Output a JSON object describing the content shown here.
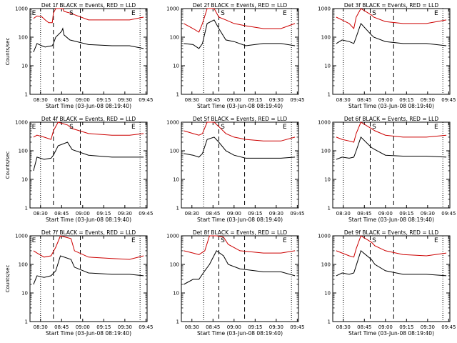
{
  "chart_data": [
    {
      "type": "line",
      "title": "Det 1f BLACK = Events, RED = LLD",
      "xlabel": "Start Time (03-Jun-08 08:19:40)",
      "ylabel": "Counts/sec",
      "yscale": "log",
      "ylim": [
        1,
        1000
      ],
      "ytick_labels": [
        "1",
        "10",
        "100",
        "1000"
      ],
      "xtick_labels": [
        "08:30",
        "08:45",
        "09:00",
        "09:15",
        "09:30",
        "09:45"
      ],
      "annotations": [
        "E",
        "S",
        "E"
      ],
      "series": [
        {
          "name": "BLACK = Events",
          "color": "#000000",
          "x": [
            0.03,
            0.06,
            0.1,
            0.13,
            0.16,
            0.19,
            0.2,
            0.22,
            0.27,
            0.28,
            0.29,
            0.34,
            0.5,
            0.7,
            0.85,
            0.97
          ],
          "y": [
            30,
            60,
            50,
            45,
            48,
            50,
            60,
            100,
            160,
            200,
            120,
            80,
            55,
            50,
            50,
            40
          ]
        },
        {
          "name": "RED = LLD",
          "color": "#cc0000",
          "x": [
            0.03,
            0.06,
            0.1,
            0.13,
            0.16,
            0.19,
            0.2,
            0.22,
            0.27,
            0.28,
            0.29,
            0.34,
            0.5,
            0.7,
            0.85,
            0.97
          ],
          "y": [
            450,
            550,
            520,
            400,
            320,
            320,
            700,
            1000,
            1000,
            1000,
            800,
            700,
            400,
            400,
            400,
            500
          ]
        }
      ]
    },
    {
      "type": "line",
      "title": "Det 2f BLACK = Events, RED = LLD",
      "xlabel": "Start Time (03-Jun-08 08:19:40)",
      "ylabel": "",
      "yscale": "log",
      "ylim": [
        1,
        1000
      ],
      "ytick_labels": [
        "1",
        "10",
        "100",
        "1000"
      ],
      "xtick_labels": [
        "08:30",
        "08:45",
        "09:00",
        "09:15",
        "09:30",
        "09:45"
      ],
      "annotations": [
        "S",
        "E"
      ],
      "series": [
        {
          "name": "BLACK = Events",
          "color": "#000000",
          "x": [
            0.02,
            0.1,
            0.15,
            0.18,
            0.22,
            0.28,
            0.32,
            0.38,
            0.45,
            0.55,
            0.7,
            0.85,
            0.97
          ],
          "y": [
            60,
            55,
            40,
            60,
            300,
            400,
            200,
            80,
            70,
            50,
            60,
            60,
            50
          ]
        },
        {
          "name": "RED = LLD",
          "color": "#cc0000",
          "x": [
            0.02,
            0.1,
            0.15,
            0.18,
            0.22,
            0.28,
            0.32,
            0.38,
            0.45,
            0.55,
            0.7,
            0.85,
            0.97
          ],
          "y": [
            300,
            200,
            150,
            300,
            1000,
            1000,
            500,
            400,
            300,
            250,
            200,
            200,
            300
          ]
        }
      ]
    },
    {
      "type": "line",
      "title": "Det 3f BLACK = Events, RED = LLD",
      "xlabel": "Start Time (03-Jun-08 08:19:40)",
      "ylabel": "",
      "yscale": "log",
      "ylim": [
        1,
        1000
      ],
      "ytick_labels": [
        "1",
        "10",
        "100",
        "1000"
      ],
      "xtick_labels": [
        "08:30",
        "08:45",
        "09:00",
        "09:15",
        "09:30",
        "09:45"
      ],
      "annotations": [
        "S",
        "E"
      ],
      "series": [
        {
          "name": "BLACK = Events",
          "color": "#000000",
          "x": [
            0.03,
            0.08,
            0.14,
            0.18,
            0.2,
            0.24,
            0.33,
            0.35,
            0.45,
            0.6,
            0.8,
            0.97
          ],
          "y": [
            60,
            80,
            70,
            60,
            100,
            300,
            120,
            100,
            70,
            60,
            60,
            50
          ]
        },
        {
          "name": "RED = LLD",
          "color": "#cc0000",
          "x": [
            0.03,
            0.08,
            0.14,
            0.18,
            0.2,
            0.24,
            0.33,
            0.35,
            0.45,
            0.6,
            0.8,
            0.97
          ],
          "y": [
            500,
            400,
            300,
            200,
            500,
            1000,
            600,
            500,
            350,
            300,
            300,
            400
          ]
        }
      ]
    },
    {
      "type": "line",
      "title": "Det 4f BLACK = Events, RED = LLD",
      "xlabel": "Start Time (03-Jun-08 08:19:40)",
      "ylabel": "Counts/sec",
      "yscale": "log",
      "ylim": [
        1,
        1000
      ],
      "ytick_labels": [
        "1",
        "10",
        "100",
        "1000"
      ],
      "xtick_labels": [
        "08:30",
        "08:45",
        "09:00",
        "09:15",
        "09:30",
        "09:45"
      ],
      "annotations": [
        "E",
        "S",
        "E"
      ],
      "series": [
        {
          "name": "BLACK = Events",
          "color": "#000000",
          "x": [
            0.03,
            0.06,
            0.12,
            0.18,
            0.2,
            0.24,
            0.32,
            0.36,
            0.5,
            0.7,
            0.85,
            0.97
          ],
          "y": [
            20,
            60,
            50,
            55,
            70,
            150,
            200,
            110,
            70,
            60,
            60,
            60
          ]
        },
        {
          "name": "RED = LLD",
          "color": "#cc0000",
          "x": [
            0.03,
            0.06,
            0.12,
            0.18,
            0.2,
            0.24,
            0.32,
            0.36,
            0.5,
            0.7,
            0.85,
            0.97
          ],
          "y": [
            300,
            350,
            300,
            250,
            500,
            1000,
            800,
            600,
            400,
            350,
            350,
            400
          ]
        }
      ]
    },
    {
      "type": "line",
      "title": "Det 5f BLACK = Events, RED = LLD",
      "xlabel": "Start Time (03-Jun-08 08:19:40)",
      "ylabel": "",
      "yscale": "log",
      "ylim": [
        1,
        1000
      ],
      "ytick_labels": [
        "1",
        "10",
        "100",
        "1000"
      ],
      "xtick_labels": [
        "08:30",
        "08:45",
        "09:00",
        "09:15",
        "09:30",
        "09:45"
      ],
      "annotations": [
        "S",
        "E"
      ],
      "series": [
        {
          "name": "BLACK = Events",
          "color": "#000000",
          "x": [
            0.02,
            0.1,
            0.15,
            0.18,
            0.22,
            0.28,
            0.32,
            0.38,
            0.45,
            0.55,
            0.7,
            0.85,
            0.97
          ],
          "y": [
            80,
            70,
            60,
            80,
            250,
            300,
            200,
            100,
            70,
            55,
            55,
            55,
            60
          ]
        },
        {
          "name": "RED = LLD",
          "color": "#cc0000",
          "x": [
            0.02,
            0.1,
            0.15,
            0.18,
            0.22,
            0.28,
            0.32,
            0.38,
            0.45,
            0.55,
            0.7,
            0.85,
            0.97
          ],
          "y": [
            500,
            400,
            350,
            400,
            1000,
            1000,
            700,
            400,
            300,
            250,
            220,
            220,
            300
          ]
        }
      ]
    },
    {
      "type": "line",
      "title": "Det 6f BLACK = Events, RED = LLD",
      "xlabel": "Start Time (03-Jun-08 08:19:40)",
      "ylabel": "",
      "yscale": "log",
      "ylim": [
        1,
        1000
      ],
      "ytick_labels": [
        "1",
        "10",
        "100",
        "1000"
      ],
      "xtick_labels": [
        "08:30",
        "08:45",
        "09:00",
        "09:15",
        "09:30",
        "09:45"
      ],
      "annotations": [
        "S",
        "E"
      ],
      "series": [
        {
          "name": "BLACK = Events",
          "color": "#000000",
          "x": [
            0.03,
            0.08,
            0.14,
            0.18,
            0.2,
            0.24,
            0.33,
            0.36,
            0.45,
            0.6,
            0.8,
            0.97
          ],
          "y": [
            50,
            60,
            55,
            60,
            100,
            300,
            130,
            110,
            70,
            65,
            65,
            60
          ]
        },
        {
          "name": "RED = LLD",
          "color": "#cc0000",
          "x": [
            0.03,
            0.08,
            0.14,
            0.18,
            0.2,
            0.24,
            0.33,
            0.36,
            0.45,
            0.6,
            0.8,
            0.97
          ],
          "y": [
            300,
            250,
            220,
            200,
            400,
            1000,
            600,
            500,
            350,
            300,
            300,
            350
          ]
        }
      ]
    },
    {
      "type": "line",
      "title": "Det 7f BLACK = Events, RED = LLD",
      "xlabel": "Start Time (03-Jun-08 08:19:40)",
      "ylabel": "Counts/sec",
      "yscale": "log",
      "ylim": [
        1,
        1000
      ],
      "ytick_labels": [
        "1",
        "10",
        "100",
        "1000"
      ],
      "xtick_labels": [
        "08:30",
        "08:45",
        "09:00",
        "09:15",
        "09:30",
        "09:45"
      ],
      "annotations": [
        "E",
        "E"
      ],
      "series": [
        {
          "name": "BLACK = Events",
          "color": "#000000",
          "x": [
            0.03,
            0.06,
            0.12,
            0.18,
            0.22,
            0.26,
            0.35,
            0.38,
            0.5,
            0.7,
            0.85,
            0.97
          ],
          "y": [
            20,
            40,
            35,
            40,
            60,
            200,
            150,
            80,
            50,
            45,
            45,
            40
          ]
        },
        {
          "name": "RED = LLD",
          "color": "#cc0000",
          "x": [
            0.03,
            0.06,
            0.12,
            0.18,
            0.22,
            0.26,
            0.35,
            0.38,
            0.5,
            0.7,
            0.85,
            0.97
          ],
          "y": [
            300,
            250,
            180,
            200,
            400,
            1000,
            800,
            300,
            180,
            160,
            150,
            200
          ]
        }
      ]
    },
    {
      "type": "line",
      "title": "Det 8f BLACK = Events, RED = LLD",
      "xlabel": "Start Time (03-Jun-08 08:19:40)",
      "ylabel": "",
      "yscale": "log",
      "ylim": [
        1,
        1000
      ],
      "ytick_labels": [
        "1",
        "10",
        "100",
        "1000"
      ],
      "xtick_labels": [
        "08:30",
        "08:45",
        "09:00",
        "09:15",
        "09:30",
        "09:45"
      ],
      "annotations": [
        "S",
        "E"
      ],
      "series": [
        {
          "name": "BLACK = Events",
          "color": "#000000",
          "x": [
            0.02,
            0.1,
            0.15,
            0.2,
            0.24,
            0.3,
            0.36,
            0.4,
            0.5,
            0.7,
            0.85,
            0.97
          ],
          "y": [
            20,
            30,
            30,
            60,
            100,
            300,
            200,
            100,
            70,
            55,
            55,
            40
          ]
        },
        {
          "name": "RED = LLD",
          "color": "#cc0000",
          "x": [
            0.02,
            0.1,
            0.15,
            0.2,
            0.24,
            0.3,
            0.36,
            0.4,
            0.5,
            0.7,
            0.85,
            0.97
          ],
          "y": [
            300,
            250,
            220,
            300,
            1000,
            1000,
            900,
            500,
            300,
            250,
            250,
            300
          ]
        }
      ]
    },
    {
      "type": "line",
      "title": "Det 9f BLACK = Events, RED = LLD",
      "xlabel": "Start Time (03-Jun-08 08:19:40)",
      "ylabel": "",
      "yscale": "log",
      "ylim": [
        1,
        1000
      ],
      "ytick_labels": [
        "1",
        "10",
        "100",
        "1000"
      ],
      "xtick_labels": [
        "08:30",
        "08:45",
        "09:00",
        "09:15",
        "09:30",
        "09:45"
      ],
      "annotations": [
        "S",
        "E"
      ],
      "series": [
        {
          "name": "BLACK = Events",
          "color": "#000000",
          "x": [
            0.03,
            0.08,
            0.14,
            0.18,
            0.2,
            0.24,
            0.33,
            0.36,
            0.45,
            0.6,
            0.8,
            0.97
          ],
          "y": [
            40,
            50,
            45,
            50,
            90,
            300,
            150,
            100,
            60,
            45,
            45,
            40
          ]
        },
        {
          "name": "RED = LLD",
          "color": "#cc0000",
          "x": [
            0.03,
            0.08,
            0.14,
            0.18,
            0.2,
            0.24,
            0.33,
            0.36,
            0.45,
            0.6,
            0.8,
            0.97
          ],
          "y": [
            300,
            250,
            200,
            180,
            350,
            1000,
            600,
            450,
            300,
            220,
            200,
            250
          ]
        }
      ]
    }
  ]
}
